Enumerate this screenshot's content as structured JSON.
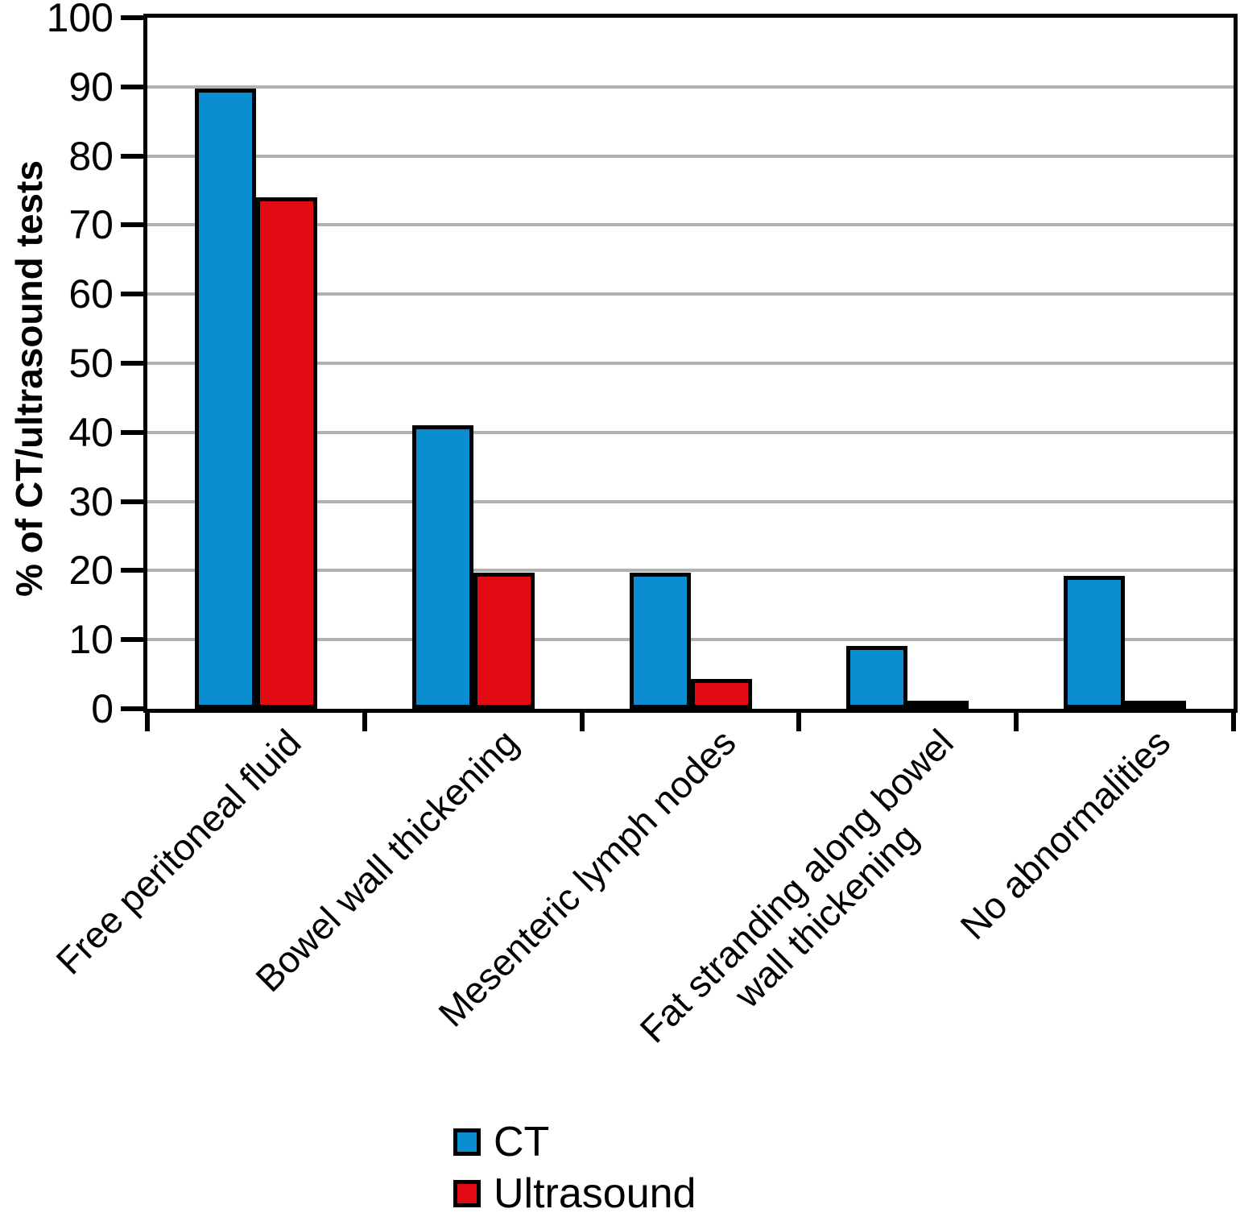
{
  "chart_data": {
    "type": "bar",
    "title": "",
    "xlabel": "",
    "ylabel": "% of CT/ultrasound tests",
    "ylim": [
      0,
      100
    ],
    "ytick_step": 10,
    "y_ticks": [
      0,
      10,
      20,
      30,
      40,
      50,
      60,
      70,
      80,
      90,
      100
    ],
    "grid": true,
    "gridline_color": "#b1b1b1",
    "frame_color": "#000000",
    "legend_position": "bottom",
    "categories": [
      "Free peritoneal fluid",
      "Bowel wall thickening",
      "Mesenteric lymph nodes",
      "Fat stranding along bowel\nwall thickening",
      "No abnormalities"
    ],
    "series": [
      {
        "name": "CT",
        "color": "#0a8dd1",
        "values": [
          89.7,
          41.0,
          19.7,
          9.1,
          19.2
        ]
      },
      {
        "name": "Ultrasound",
        "color": "#e30b13",
        "values": [
          74.0,
          19.7,
          4.3,
          0.3,
          0.3
        ]
      }
    ]
  }
}
